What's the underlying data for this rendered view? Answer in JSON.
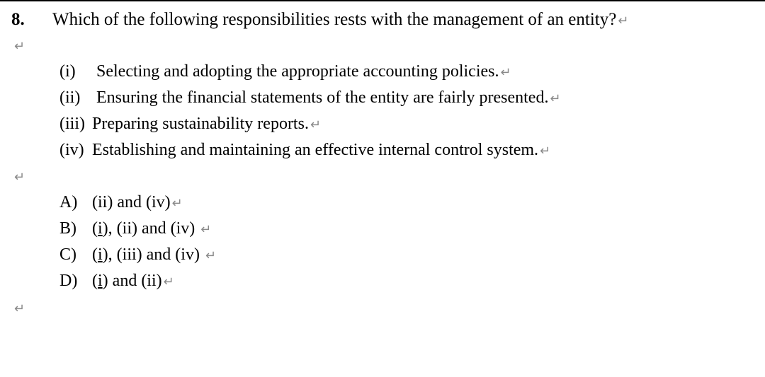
{
  "question": {
    "number": "8.",
    "text": "Which of the following responsibilities rests with the management of an entity?"
  },
  "paragraph_mark": "↵",
  "statements": [
    {
      "label": "(i)",
      "label_class": "",
      "text": "Selecting and adopting the appropriate accounting policies."
    },
    {
      "label": "(ii)",
      "label_class": "",
      "text": "Ensuring the financial statements of the entity are fairly presented."
    },
    {
      "label": "(iii)",
      "label_class": "tight",
      "text": "Preparing sustainability reports."
    },
    {
      "label": "(iv)",
      "label_class": "tight",
      "text": "Establishing and maintaining an effective internal control system."
    }
  ],
  "options": [
    {
      "label": "A)",
      "html": "(ii) and (iv)"
    },
    {
      "label": "B)",
      "html": "(<span class=\"u\">i</span>), (ii) and (iv) "
    },
    {
      "label": "C)",
      "html": "(<span class=\"u\">i</span>), (iii) and (iv) "
    },
    {
      "label": "D)",
      "html": "(<span class=\"u\">i</span>) and (ii)"
    }
  ],
  "colors": {
    "text": "#000000",
    "background": "#ffffff",
    "mark": "#8a8a8a"
  }
}
